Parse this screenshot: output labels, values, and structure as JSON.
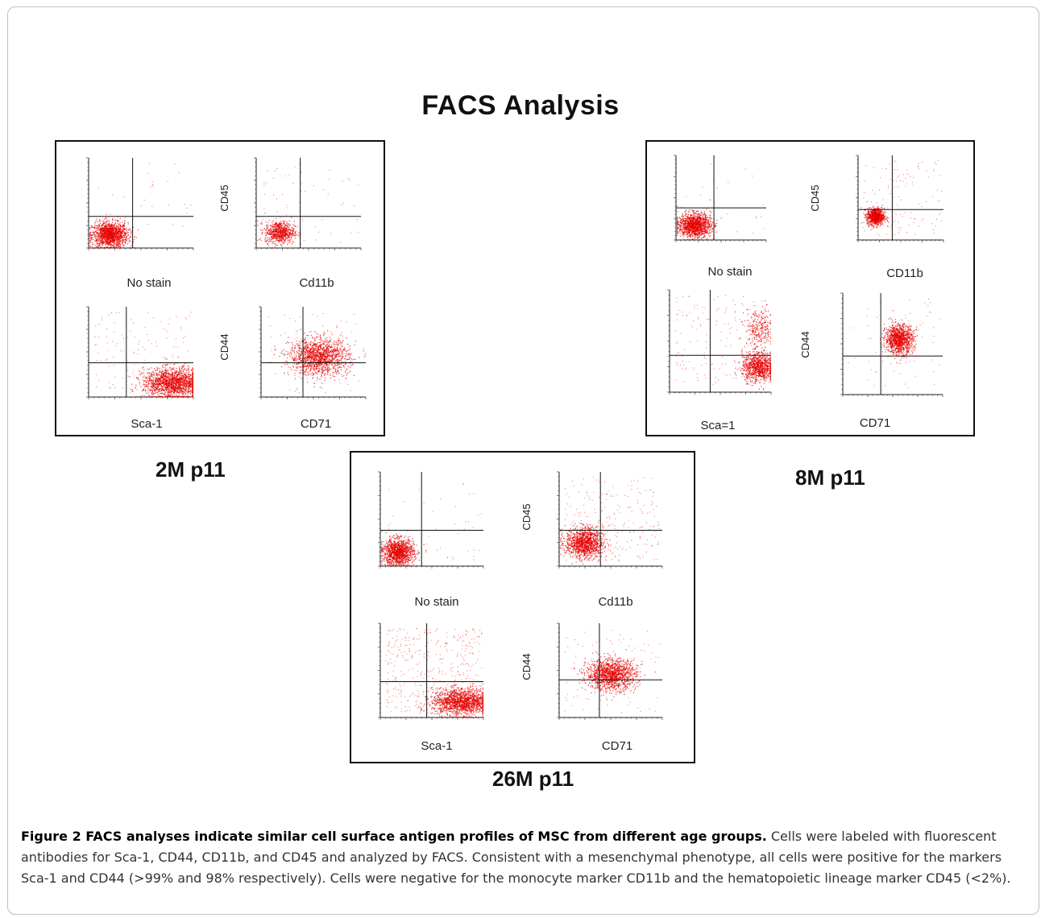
{
  "figure": {
    "heading": "FACS Analysis",
    "caption_bold": "Figure 2 FACS analyses indicate similar cell surface antigen profiles of MSC from different age groups.",
    "caption_text": " Cells were labeled with fluorescent antibodies for Sca-1, CD44, CD11b, and CD45 and analyzed by FACS.  Consistent with a mesenchymal phenotype, all cells were positive for the markers Sca-1 and CD44 (>99% and 98% respectively).  Cells were negative for the monocyte marker CD11b and the hematopoietic lineage marker CD45 (<2%)."
  },
  "colors": {
    "dot": "#e60000",
    "axis": "#222222"
  },
  "chart_data": [
    {
      "type": "scatter",
      "group_label": "2M p11",
      "plots": [
        {
          "name": "no-stain",
          "xlabel": "No stain",
          "ylabel": "",
          "gate": [
            0.42,
            0.35
          ],
          "clusters": [
            {
              "cx": 0.2,
              "cy": 0.15,
              "sx": 0.085,
              "sy": 0.07,
              "n": 1400
            }
          ],
          "spread": 30
        },
        {
          "name": "cd11b",
          "xlabel": "Cd11b",
          "ylabel": "CD45",
          "gate": [
            0.42,
            0.35
          ],
          "clusters": [
            {
              "cx": 0.22,
              "cy": 0.18,
              "sx": 0.07,
              "sy": 0.06,
              "n": 700
            }
          ],
          "spread": 60
        },
        {
          "name": "sca-1",
          "xlabel": "Sca-1",
          "ylabel": "",
          "gate": [
            0.36,
            0.38
          ],
          "clusters": [
            {
              "cx": 0.8,
              "cy": 0.16,
              "sx": 0.14,
              "sy": 0.08,
              "n": 1600
            }
          ],
          "spread": 140
        },
        {
          "name": "cd71",
          "xlabel": "CD71",
          "ylabel": "CD44",
          "gate": [
            0.4,
            0.38
          ],
          "clusters": [
            {
              "cx": 0.55,
              "cy": 0.45,
              "sx": 0.14,
              "sy": 0.1,
              "n": 1400
            }
          ],
          "spread": 80
        }
      ]
    },
    {
      "type": "scatter",
      "group_label": "8M p11",
      "plots": [
        {
          "name": "no-stain",
          "xlabel": "No stain",
          "ylabel": "",
          "gate": [
            0.42,
            0.38
          ],
          "clusters": [
            {
              "cx": 0.2,
              "cy": 0.18,
              "sx": 0.09,
              "sy": 0.07,
              "n": 1300
            }
          ],
          "spread": 20
        },
        {
          "name": "cd11b",
          "xlabel": "CD11b",
          "ylabel": "CD45",
          "gate": [
            0.4,
            0.36
          ],
          "clusters": [
            {
              "cx": 0.2,
              "cy": 0.28,
              "sx": 0.05,
              "sy": 0.05,
              "n": 800
            }
          ],
          "spread": 120
        },
        {
          "name": "sca-1",
          "xlabel": "Sca=1",
          "ylabel": "",
          "gate": [
            0.4,
            0.36
          ],
          "clusters": [
            {
              "cx": 0.87,
              "cy": 0.25,
              "sx": 0.08,
              "sy": 0.07,
              "n": 900
            },
            {
              "cx": 0.88,
              "cy": 0.62,
              "sx": 0.07,
              "sy": 0.1,
              "n": 250
            }
          ],
          "spread": 170
        },
        {
          "name": "cd71",
          "xlabel": "CD71",
          "ylabel": "CD44",
          "gate": [
            0.38,
            0.38
          ],
          "clusters": [
            {
              "cx": 0.56,
              "cy": 0.55,
              "sx": 0.07,
              "sy": 0.07,
              "n": 1100
            }
          ],
          "spread": 60
        }
      ]
    },
    {
      "type": "scatter",
      "group_label": "26M p11",
      "plots": [
        {
          "name": "no-stain",
          "xlabel": "No stain",
          "ylabel": "",
          "gate": [
            0.4,
            0.38
          ],
          "clusters": [
            {
              "cx": 0.17,
              "cy": 0.15,
              "sx": 0.075,
              "sy": 0.07,
              "n": 1200
            }
          ],
          "spread": 40
        },
        {
          "name": "cd11b",
          "xlabel": "Cd11b",
          "ylabel": "CD45",
          "gate": [
            0.4,
            0.38
          ],
          "clusters": [
            {
              "cx": 0.24,
              "cy": 0.25,
              "sx": 0.09,
              "sy": 0.08,
              "n": 1200
            }
          ],
          "spread": 220
        },
        {
          "name": "sca-1",
          "xlabel": "Sca-1",
          "ylabel": "",
          "gate": [
            0.45,
            0.38
          ],
          "clusters": [
            {
              "cx": 0.78,
              "cy": 0.17,
              "sx": 0.14,
              "sy": 0.07,
              "n": 1500
            }
          ],
          "spread": 420
        },
        {
          "name": "cd71",
          "xlabel": "CD71",
          "ylabel": "CD44",
          "gate": [
            0.39,
            0.4
          ],
          "clusters": [
            {
              "cx": 0.5,
              "cy": 0.46,
              "sx": 0.12,
              "sy": 0.08,
              "n": 1300
            }
          ],
          "spread": 90
        }
      ]
    }
  ]
}
